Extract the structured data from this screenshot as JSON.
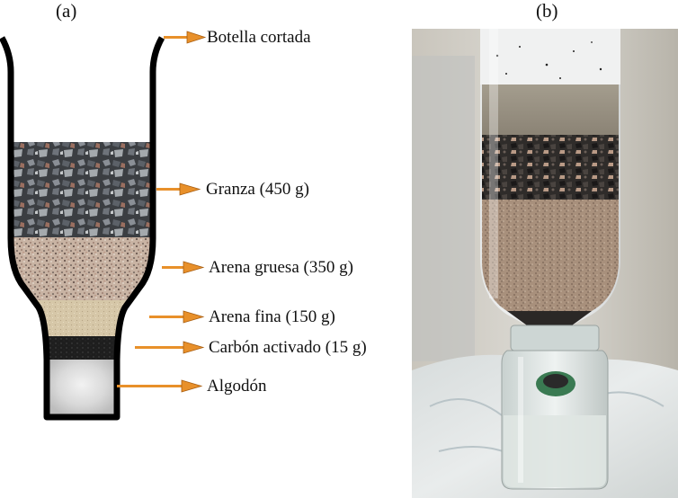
{
  "panels": {
    "a": {
      "label": "(a)"
    },
    "b": {
      "label": "(b)"
    }
  },
  "callouts": [
    {
      "key": "bottle",
      "text": "Botella cortada"
    },
    {
      "key": "gravel",
      "text": "Granza (450 g)"
    },
    {
      "key": "coarse_sand",
      "text": "Arena gruesa (350 g)"
    },
    {
      "key": "fine_sand",
      "text": "Arena fina (150 g)"
    },
    {
      "key": "charcoal",
      "text": "Carbón activado (15 g)"
    },
    {
      "key": "cotton",
      "text": "Algodón"
    }
  ],
  "colors": {
    "outline": "#000000",
    "arrow": "#e8902a",
    "gravel": "#3b3e42",
    "coarse_sand": "#c8b3a3",
    "fine_sand": "#d6c7a8",
    "charcoal": "#1e1e1e",
    "cotton": "#dcdcdc"
  }
}
